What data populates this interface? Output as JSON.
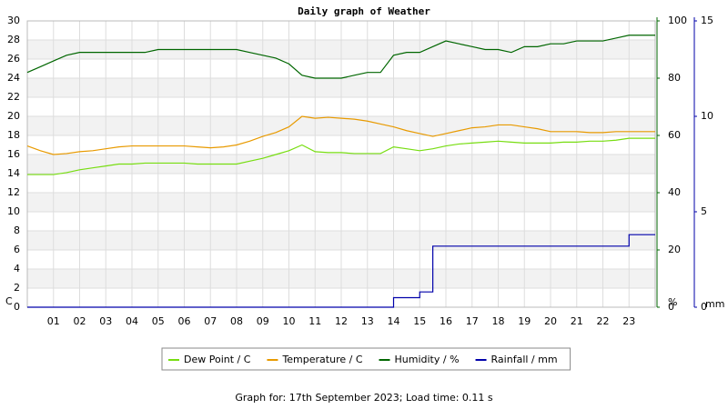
{
  "chart_data": {
    "type": "line",
    "title": "Daily graph of Weather",
    "footer": "Graph for: 17th September 2023; Load time: 0.11 s",
    "ylabel": "C",
    "y2label": "%",
    "y3label": "mm",
    "xlim": [
      0,
      24
    ],
    "xticks": [
      {
        "value": 1,
        "label": "01"
      },
      {
        "value": 2,
        "label": "02"
      },
      {
        "value": 3,
        "label": "03"
      },
      {
        "value": 4,
        "label": "04"
      },
      {
        "value": 5,
        "label": "05"
      },
      {
        "value": 6,
        "label": "06"
      },
      {
        "value": 7,
        "label": "07"
      },
      {
        "value": 8,
        "label": "08"
      },
      {
        "value": 9,
        "label": "09"
      },
      10,
      11,
      12,
      13,
      14,
      15,
      16,
      17,
      18,
      19,
      20,
      21,
      22,
      23
    ],
    "ylim": [
      0,
      30
    ],
    "yticks": [
      0,
      2,
      4,
      6,
      8,
      10,
      12,
      14,
      16,
      18,
      20,
      22,
      24,
      26,
      28,
      30
    ],
    "ycolor": "#e89a00",
    "y2lim": [
      0,
      100
    ],
    "y2ticks": [
      0,
      20,
      40,
      60,
      80,
      100
    ],
    "y2color": "#006600",
    "y3lim": [
      0,
      15
    ],
    "y3ticks": [
      0,
      5,
      10,
      15
    ],
    "y3color": "#0000aa",
    "grid": true,
    "x": [
      0,
      0.5,
      1,
      1.5,
      2,
      2.5,
      3,
      3.5,
      4,
      4.5,
      5,
      5.5,
      6,
      6.5,
      7,
      7.5,
      8,
      8.5,
      9,
      9.5,
      10,
      10.5,
      11,
      11.5,
      12,
      12.5,
      13,
      13.5,
      14,
      14.5,
      15,
      15.5,
      16,
      16.5,
      17,
      17.5,
      18,
      18.5,
      19,
      19.5,
      20,
      20.5,
      21,
      21.5,
      22,
      22.5,
      23,
      23.5,
      24
    ],
    "series": [
      {
        "name": "Dew Point / C",
        "color": "#77dd11",
        "axis": "y",
        "values": [
          13.9,
          13.9,
          13.9,
          14.1,
          14.4,
          14.6,
          14.8,
          15.0,
          15.0,
          15.1,
          15.1,
          15.1,
          15.1,
          15.0,
          15.0,
          15.0,
          15.0,
          15.3,
          15.6,
          16.0,
          16.4,
          17.0,
          16.3,
          16.2,
          16.2,
          16.1,
          16.1,
          16.1,
          16.8,
          16.6,
          16.4,
          16.6,
          16.9,
          17.1,
          17.2,
          17.3,
          17.4,
          17.3,
          17.2,
          17.2,
          17.2,
          17.3,
          17.3,
          17.4,
          17.4,
          17.5,
          17.7,
          17.7,
          17.7
        ]
      },
      {
        "name": "Temperature / C",
        "color": "#e89a00",
        "axis": "y",
        "values": [
          16.9,
          16.4,
          16.0,
          16.1,
          16.3,
          16.4,
          16.6,
          16.8,
          16.9,
          16.9,
          16.9,
          16.9,
          16.9,
          16.8,
          16.7,
          16.8,
          17.0,
          17.4,
          17.9,
          18.3,
          18.9,
          20.0,
          19.8,
          19.9,
          19.8,
          19.7,
          19.5,
          19.2,
          18.9,
          18.5,
          18.2,
          17.9,
          18.2,
          18.5,
          18.8,
          18.9,
          19.1,
          19.1,
          18.9,
          18.7,
          18.4,
          18.4,
          18.4,
          18.3,
          18.3,
          18.4,
          18.4,
          18.4,
          18.4
        ]
      },
      {
        "name": "Humidity / %",
        "color": "#006600",
        "axis": "y2",
        "values": [
          82,
          84,
          86,
          88,
          89,
          89,
          89,
          89,
          89,
          89,
          90,
          90,
          90,
          90,
          90,
          90,
          90,
          89,
          88,
          87,
          85,
          81,
          80,
          80,
          80,
          81,
          82,
          82,
          88,
          89,
          89,
          91,
          93,
          92,
          91,
          90,
          90,
          89,
          91,
          91,
          92,
          92,
          93,
          93,
          93,
          94,
          95,
          95,
          95
        ]
      },
      {
        "name": "Rainfall / mm",
        "color": "#0000aa",
        "axis": "y3",
        "step": true,
        "values": [
          0,
          0,
          0,
          0,
          0,
          0,
          0,
          0,
          0,
          0,
          0,
          0,
          0,
          0,
          0,
          0,
          0,
          0,
          0,
          0,
          0,
          0,
          0,
          0,
          0,
          0,
          0,
          0,
          0.5,
          0.5,
          0.8,
          3.2,
          3.2,
          3.2,
          3.2,
          3.2,
          3.2,
          3.2,
          3.2,
          3.2,
          3.2,
          3.2,
          3.2,
          3.2,
          3.2,
          3.2,
          3.8,
          3.8,
          3.8
        ]
      }
    ]
  }
}
